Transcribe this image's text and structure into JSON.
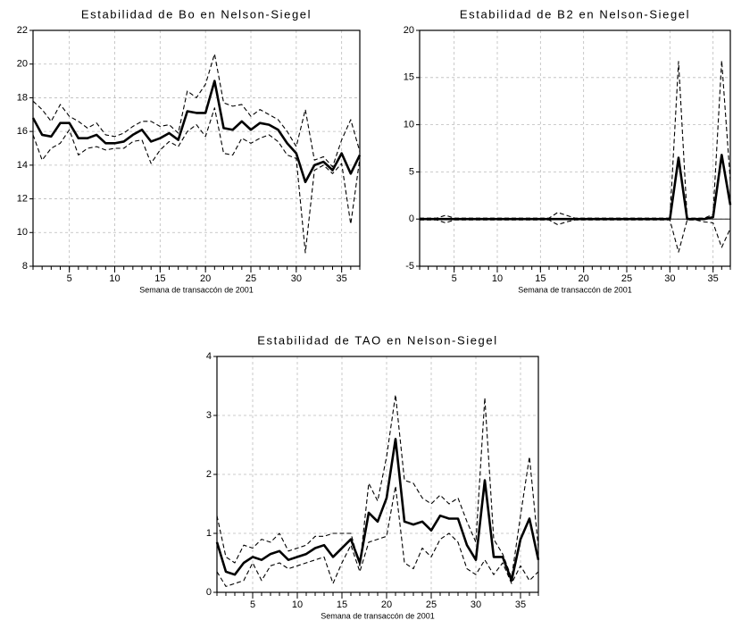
{
  "chart_data": [
    {
      "type": "line",
      "title": "Estabilidad de Bo en Nelson-Siegel",
      "x_label": "Semana de transaccón de 2001",
      "x": [
        1,
        2,
        3,
        4,
        5,
        6,
        7,
        8,
        9,
        10,
        11,
        12,
        13,
        14,
        15,
        16,
        17,
        18,
        19,
        20,
        21,
        22,
        23,
        24,
        25,
        26,
        27,
        28,
        29,
        30,
        31,
        32,
        33,
        34,
        35,
        36,
        37
      ],
      "xlim": [
        1,
        37
      ],
      "xticks": [
        5,
        10,
        15,
        20,
        25,
        30,
        35
      ],
      "ylim": [
        8,
        22
      ],
      "yticks": [
        8,
        10,
        12,
        14,
        16,
        18,
        20,
        22
      ],
      "grid": true,
      "series": [
        {
          "color": "#000000",
          "line_style": "solid",
          "values": [
            16.8,
            15.8,
            15.7,
            16.5,
            16.5,
            15.6,
            15.6,
            15.8,
            15.3,
            15.3,
            15.4,
            15.8,
            16.1,
            15.4,
            15.6,
            15.9,
            15.5,
            17.2,
            17.1,
            17.1,
            19.0,
            16.2,
            16.1,
            16.6,
            16.1,
            16.5,
            16.4,
            16.1,
            15.3,
            14.7,
            13.0,
            14.0,
            14.2,
            13.7,
            14.7,
            13.5,
            14.6
          ]
        },
        {
          "color": "#000000",
          "line_style": "dashed",
          "values": [
            17.8,
            17.3,
            16.6,
            17.6,
            16.9,
            16.6,
            16.2,
            16.5,
            15.8,
            15.7,
            15.9,
            16.3,
            16.6,
            16.6,
            16.3,
            16.4,
            15.9,
            18.4,
            18.0,
            18.8,
            20.6,
            17.7,
            17.5,
            17.6,
            16.9,
            17.3,
            17.0,
            16.7,
            16.0,
            15.1,
            17.3,
            14.3,
            14.5,
            13.9,
            15.5,
            16.7,
            14.8
          ]
        },
        {
          "color": "#000000",
          "line_style": "dashed",
          "values": [
            15.8,
            14.3,
            15.0,
            15.3,
            16.1,
            14.6,
            15.0,
            15.1,
            14.9,
            15.0,
            15.0,
            15.4,
            15.5,
            14.1,
            14.9,
            15.4,
            15.1,
            16.0,
            16.4,
            15.7,
            17.4,
            14.7,
            14.6,
            15.6,
            15.3,
            15.6,
            15.8,
            15.4,
            14.6,
            14.4,
            8.8,
            13.7,
            14.0,
            13.5,
            14.1,
            10.5,
            14.4
          ]
        }
      ]
    },
    {
      "type": "line",
      "title": "Estabilidad de B2 en Nelson-Siegel",
      "x_label": "Semana de transaccón de 2001",
      "x": [
        1,
        2,
        3,
        4,
        5,
        6,
        7,
        8,
        9,
        10,
        11,
        12,
        13,
        14,
        15,
        16,
        17,
        18,
        19,
        20,
        21,
        22,
        23,
        24,
        25,
        26,
        27,
        28,
        29,
        30,
        31,
        32,
        33,
        34,
        35,
        36,
        37
      ],
      "xlim": [
        1,
        37
      ],
      "xticks": [
        5,
        10,
        15,
        20,
        25,
        30,
        35
      ],
      "ylim": [
        -5,
        20
      ],
      "yticks": [
        -5,
        0,
        5,
        10,
        15,
        20
      ],
      "grid": true,
      "reference_line": 0,
      "series": [
        {
          "color": "#000000",
          "line_style": "solid",
          "values": [
            0,
            0,
            0,
            0,
            0,
            0,
            0,
            0,
            0,
            0,
            0,
            0,
            0,
            0,
            0,
            0,
            0,
            0,
            0,
            0,
            0,
            0,
            0,
            0,
            0,
            0,
            0,
            0,
            0,
            0,
            6.5,
            0,
            0,
            0,
            0.2,
            6.8,
            1.5
          ]
        },
        {
          "color": "#000000",
          "line_style": "dashed",
          "values": [
            0.1,
            0.1,
            0.1,
            0.4,
            0.1,
            0.1,
            0.1,
            0.1,
            0.1,
            0.1,
            0.1,
            0.1,
            0.1,
            0.1,
            0.1,
            0.1,
            0.7,
            0.4,
            0.1,
            0.1,
            0.1,
            0.1,
            0.1,
            0.1,
            0.1,
            0.1,
            0.1,
            0.1,
            0.1,
            0.1,
            16.7,
            0.1,
            0.1,
            0.1,
            0.5,
            16.8,
            4
          ]
        },
        {
          "color": "#000000",
          "line_style": "dashed",
          "values": [
            -0.1,
            -0.1,
            -0.1,
            -0.4,
            -0.1,
            -0.1,
            -0.1,
            -0.1,
            -0.1,
            -0.1,
            -0.1,
            -0.1,
            -0.1,
            -0.1,
            -0.1,
            -0.1,
            -0.6,
            -0.3,
            -0.1,
            -0.1,
            -0.1,
            -0.1,
            -0.1,
            -0.1,
            -0.1,
            -0.1,
            -0.1,
            -0.1,
            -0.1,
            -0.1,
            -3.5,
            -0.1,
            -0.1,
            -0.3,
            -0.4,
            -3.0,
            -1
          ]
        }
      ]
    },
    {
      "type": "line",
      "title": "Estabilidad de TAO en Nelson-Siegel",
      "x_label": "Semana de transaccón de 2001",
      "x": [
        1,
        2,
        3,
        4,
        5,
        6,
        7,
        8,
        9,
        10,
        11,
        12,
        13,
        14,
        15,
        16,
        17,
        18,
        19,
        20,
        21,
        22,
        23,
        24,
        25,
        26,
        27,
        28,
        29,
        30,
        31,
        32,
        33,
        34,
        35,
        36,
        37
      ],
      "xlim": [
        1,
        37
      ],
      "xticks": [
        5,
        10,
        15,
        20,
        25,
        30,
        35
      ],
      "ylim": [
        0,
        4
      ],
      "yticks": [
        0,
        1,
        2,
        3,
        4
      ],
      "grid": true,
      "series": [
        {
          "color": "#000000",
          "line_style": "solid",
          "values": [
            0.85,
            0.35,
            0.3,
            0.5,
            0.6,
            0.55,
            0.65,
            0.7,
            0.55,
            0.6,
            0.65,
            0.75,
            0.8,
            0.6,
            0.75,
            0.9,
            0.5,
            1.35,
            1.2,
            1.6,
            2.6,
            1.2,
            1.15,
            1.2,
            1.05,
            1.3,
            1.25,
            1.25,
            0.8,
            0.55,
            1.9,
            0.6,
            0.6,
            0.2,
            0.9,
            1.25,
            0.55
          ]
        },
        {
          "color": "#000000",
          "line_style": "dashed",
          "values": [
            1.3,
            0.6,
            0.5,
            0.8,
            0.75,
            0.9,
            0.85,
            1.0,
            0.7,
            0.75,
            0.8,
            0.95,
            0.95,
            1.0,
            1.0,
            1.0,
            0.45,
            1.85,
            1.55,
            2.3,
            3.35,
            1.9,
            1.85,
            1.6,
            1.5,
            1.65,
            1.5,
            1.6,
            1.2,
            0.85,
            3.3,
            0.9,
            0.65,
            0.25,
            1.3,
            2.3,
            0.75
          ]
        },
        {
          "color": "#000000",
          "line_style": "dashed",
          "values": [
            0.35,
            0.1,
            0.15,
            0.2,
            0.5,
            0.2,
            0.45,
            0.5,
            0.4,
            0.45,
            0.5,
            0.55,
            0.6,
            0.15,
            0.5,
            0.8,
            0.35,
            0.85,
            0.9,
            0.95,
            1.8,
            0.5,
            0.4,
            0.75,
            0.6,
            0.9,
            1.0,
            0.85,
            0.4,
            0.3,
            0.55,
            0.3,
            0.5,
            0.15,
            0.45,
            0.2,
            0.35
          ]
        }
      ]
    }
  ]
}
